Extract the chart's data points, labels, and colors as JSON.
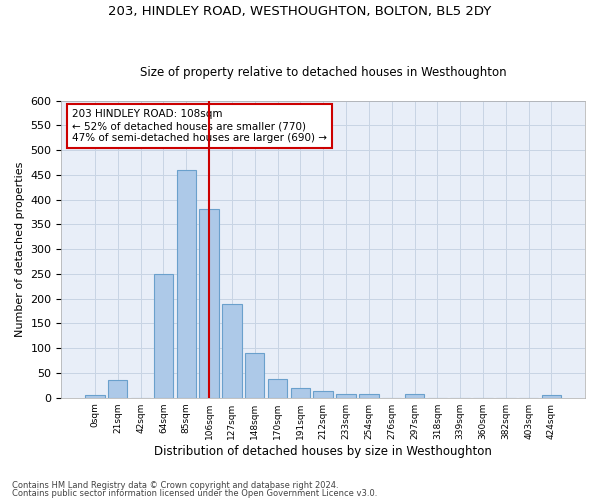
{
  "title1": "203, HINDLEY ROAD, WESTHOUGHTON, BOLTON, BL5 2DY",
  "title2": "Size of property relative to detached houses in Westhoughton",
  "xlabel": "Distribution of detached houses by size in Westhoughton",
  "ylabel": "Number of detached properties",
  "bar_labels": [
    "0sqm",
    "21sqm",
    "42sqm",
    "64sqm",
    "85sqm",
    "106sqm",
    "127sqm",
    "148sqm",
    "170sqm",
    "191sqm",
    "212sqm",
    "233sqm",
    "254sqm",
    "276sqm",
    "297sqm",
    "318sqm",
    "339sqm",
    "360sqm",
    "382sqm",
    "403sqm",
    "424sqm"
  ],
  "bar_heights": [
    5,
    35,
    0,
    250,
    460,
    380,
    190,
    90,
    38,
    20,
    13,
    8,
    7,
    0,
    7,
    0,
    0,
    0,
    0,
    0,
    5
  ],
  "bar_color": "#adc9e8",
  "bar_edge_color": "#6aa0cc",
  "grid_color": "#c8d4e4",
  "bg_color": "#e8eef8",
  "vline_x": 5,
  "vline_color": "#cc0000",
  "annotation_line1": "203 HINDLEY ROAD: 108sqm",
  "annotation_line2": "← 52% of detached houses are smaller (770)",
  "annotation_line3": "47% of semi-detached houses are larger (690) →",
  "annotation_box_color": "#ffffff",
  "annotation_box_edge": "#cc0000",
  "footer1": "Contains HM Land Registry data © Crown copyright and database right 2024.",
  "footer2": "Contains public sector information licensed under the Open Government Licence v3.0.",
  "ylim": [
    0,
    600
  ],
  "yticks": [
    0,
    50,
    100,
    150,
    200,
    250,
    300,
    350,
    400,
    450,
    500,
    550,
    600
  ]
}
